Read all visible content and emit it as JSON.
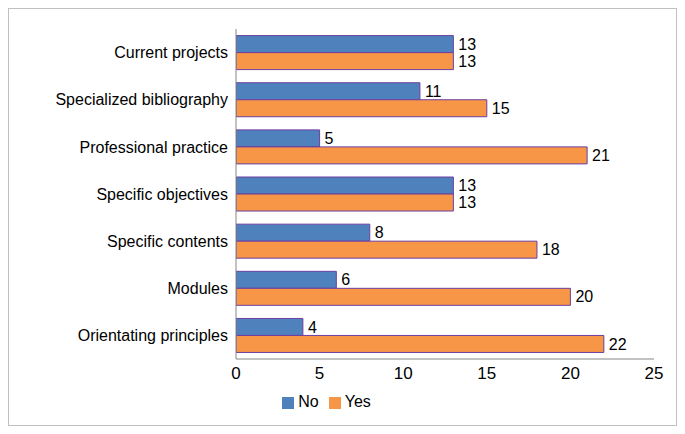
{
  "chart_data": {
    "type": "bar",
    "orientation": "horizontal",
    "categories": [
      "Current projects",
      "Specialized bibliography",
      "Professional practice",
      "Specific objectives",
      "Specific contents",
      "Modules",
      "Orientating principles"
    ],
    "series": [
      {
        "name": "No",
        "color": "#4f81bd",
        "values": [
          13,
          11,
          5,
          13,
          8,
          6,
          4
        ]
      },
      {
        "name": "Yes",
        "color": "#f79646",
        "values": [
          13,
          15,
          21,
          13,
          18,
          20,
          22
        ]
      }
    ],
    "xlim": [
      0,
      25
    ],
    "xticks": [
      0,
      5,
      10,
      15,
      20,
      25
    ],
    "grid": false,
    "legend": "bottom",
    "data_labels": true
  }
}
